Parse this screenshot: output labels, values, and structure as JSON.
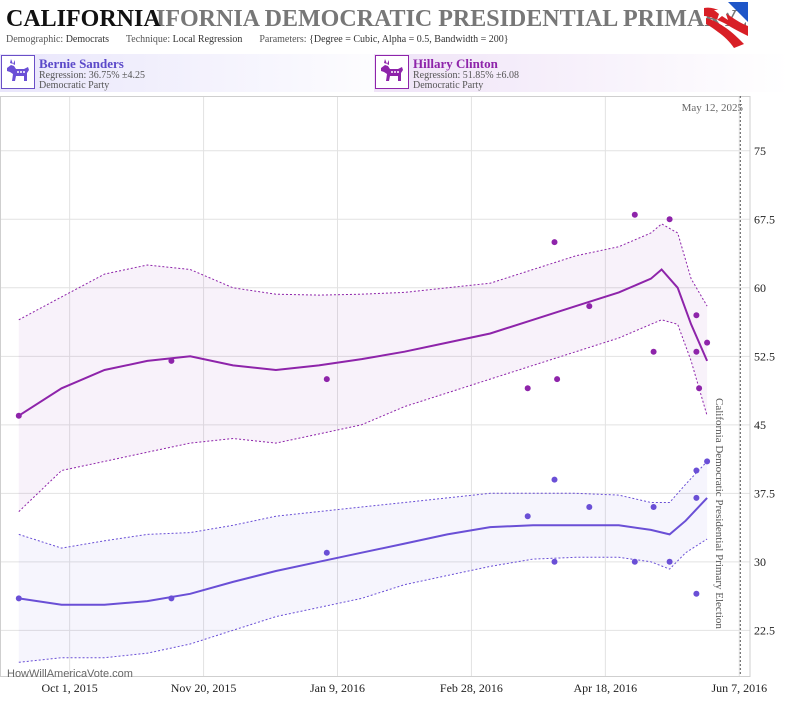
{
  "header": {
    "title_bold": "CALIFORNIA",
    "title_ghost": "IFORNIA DEMOCRATIC PRESIDENTIAL PRIMARY 20",
    "demographic_label": "Demographic:",
    "demographic_value": "Democrats",
    "technique_label": "Technique:",
    "technique_value": "Local Regression",
    "parameters_label": "Parameters:",
    "parameters_value": "{Degree = Cubic, Alpha = 0.5, Bandwidth = 200}"
  },
  "candidates": [
    {
      "name": "Bernie Sanders",
      "regression": "Regression: 36.75% ±4.25",
      "party": "Democratic Party",
      "color": "#6a4fd6"
    },
    {
      "name": "Hillary Clinton",
      "regression": "Regression: 51.85% ±6.08",
      "party": "Democratic Party",
      "color": "#8e24aa"
    }
  ],
  "watermark": "HowWillAmericaVote.com",
  "chart_data": {
    "type": "scatter",
    "date_label": "May 12, 2025",
    "election_label": "California Democratic Presidential Primary Election",
    "x_ticks": [
      "Oct 1, 2015",
      "Nov 20, 2015",
      "Jan 9, 2016",
      "Feb 28, 2016",
      "Apr 18, 2016",
      "Jun 7, 2016"
    ],
    "y_ticks": [
      "22.5",
      "30",
      "37.5",
      "45",
      "52.5",
      "60",
      "67.5",
      "75"
    ],
    "ylim": [
      17.5,
      81
    ],
    "xlim": [
      "2015-09-05",
      "2016-06-11"
    ],
    "grid": true,
    "series": [
      {
        "name": "Hillary Clinton",
        "color": "#8e24aa",
        "points": [
          [
            "2015-09-12",
            46
          ],
          [
            "2015-11-08",
            52
          ],
          [
            "2016-01-05",
            50
          ],
          [
            "2016-03-20",
            49
          ],
          [
            "2016-03-30",
            65
          ],
          [
            "2016-03-31",
            50
          ],
          [
            "2016-04-12",
            58
          ],
          [
            "2016-04-29",
            68
          ],
          [
            "2016-05-06",
            53
          ],
          [
            "2016-05-12",
            67.5
          ],
          [
            "2016-05-22",
            57
          ],
          [
            "2016-05-22",
            53
          ],
          [
            "2016-05-23",
            49
          ],
          [
            "2016-05-26",
            54
          ]
        ],
        "trend": [
          [
            "2015-09-12",
            46
          ],
          [
            "2015-09-28",
            49
          ],
          [
            "2015-10-14",
            51
          ],
          [
            "2015-10-30",
            52
          ],
          [
            "2015-11-15",
            52.5
          ],
          [
            "2015-12-01",
            51.5
          ],
          [
            "2015-12-17",
            51
          ],
          [
            "2016-01-02",
            51.5
          ],
          [
            "2016-01-18",
            52.2
          ],
          [
            "2016-02-03",
            53
          ],
          [
            "2016-02-19",
            54
          ],
          [
            "2016-03-06",
            55
          ],
          [
            "2016-03-22",
            56.5
          ],
          [
            "2016-04-07",
            58
          ],
          [
            "2016-04-23",
            59.5
          ],
          [
            "2016-05-05",
            61
          ],
          [
            "2016-05-09",
            62
          ],
          [
            "2016-05-15",
            60
          ],
          [
            "2016-05-20",
            56
          ],
          [
            "2016-05-26",
            52
          ]
        ],
        "band_upper": [
          [
            "2015-09-12",
            56.5
          ],
          [
            "2015-09-28",
            59
          ],
          [
            "2015-10-14",
            61.5
          ],
          [
            "2015-10-30",
            62.5
          ],
          [
            "2015-11-15",
            62
          ],
          [
            "2015-12-01",
            60
          ],
          [
            "2015-12-17",
            59.3
          ],
          [
            "2016-01-02",
            59.2
          ],
          [
            "2016-01-18",
            59.3
          ],
          [
            "2016-02-03",
            59.5
          ],
          [
            "2016-02-19",
            60
          ],
          [
            "2016-03-06",
            60.5
          ],
          [
            "2016-03-22",
            62
          ],
          [
            "2016-04-07",
            63.5
          ],
          [
            "2016-04-23",
            64.5
          ],
          [
            "2016-05-05",
            66
          ],
          [
            "2016-05-09",
            67
          ],
          [
            "2016-05-15",
            66
          ],
          [
            "2016-05-20",
            61
          ],
          [
            "2016-05-26",
            58
          ]
        ],
        "band_lower": [
          [
            "2015-09-12",
            35.5
          ],
          [
            "2015-09-28",
            40
          ],
          [
            "2015-10-14",
            41
          ],
          [
            "2015-10-30",
            42
          ],
          [
            "2015-11-15",
            43
          ],
          [
            "2015-12-01",
            43.5
          ],
          [
            "2015-12-17",
            43
          ],
          [
            "2016-01-02",
            44
          ],
          [
            "2016-01-18",
            45
          ],
          [
            "2016-02-03",
            47
          ],
          [
            "2016-02-19",
            48.5
          ],
          [
            "2016-03-06",
            50
          ],
          [
            "2016-03-22",
            51.5
          ],
          [
            "2016-04-07",
            53
          ],
          [
            "2016-04-23",
            54.5
          ],
          [
            "2016-05-05",
            56
          ],
          [
            "2016-05-09",
            56.5
          ],
          [
            "2016-05-15",
            56
          ],
          [
            "2016-05-20",
            52
          ],
          [
            "2016-05-26",
            46
          ]
        ]
      },
      {
        "name": "Bernie Sanders",
        "color": "#6a4fd6",
        "points": [
          [
            "2015-09-12",
            26
          ],
          [
            "2015-11-08",
            26
          ],
          [
            "2016-01-05",
            31
          ],
          [
            "2016-03-20",
            35
          ],
          [
            "2016-03-30",
            39
          ],
          [
            "2016-03-30",
            30
          ],
          [
            "2016-04-12",
            36
          ],
          [
            "2016-04-29",
            30
          ],
          [
            "2016-05-06",
            36
          ],
          [
            "2016-05-12",
            30
          ],
          [
            "2016-05-22",
            40
          ],
          [
            "2016-05-22",
            37
          ],
          [
            "2016-05-22",
            26.5
          ],
          [
            "2016-05-26",
            41
          ]
        ],
        "trend": [
          [
            "2015-09-12",
            26
          ],
          [
            "2015-09-28",
            25.3
          ],
          [
            "2015-10-14",
            25.3
          ],
          [
            "2015-10-30",
            25.7
          ],
          [
            "2015-11-15",
            26.5
          ],
          [
            "2015-12-01",
            27.8
          ],
          [
            "2015-12-17",
            29
          ],
          [
            "2016-01-02",
            30
          ],
          [
            "2016-01-18",
            31
          ],
          [
            "2016-02-03",
            32
          ],
          [
            "2016-02-19",
            33
          ],
          [
            "2016-03-06",
            33.8
          ],
          [
            "2016-03-22",
            34
          ],
          [
            "2016-04-07",
            34
          ],
          [
            "2016-04-23",
            34
          ],
          [
            "2016-05-05",
            33.5
          ],
          [
            "2016-05-12",
            33
          ],
          [
            "2016-05-18",
            34.5
          ],
          [
            "2016-05-26",
            37
          ]
        ],
        "band_upper": [
          [
            "2015-09-12",
            33
          ],
          [
            "2015-09-28",
            31.5
          ],
          [
            "2015-10-14",
            32.3
          ],
          [
            "2015-10-30",
            33
          ],
          [
            "2015-11-15",
            33.2
          ],
          [
            "2015-12-01",
            34
          ],
          [
            "2015-12-17",
            35
          ],
          [
            "2016-01-02",
            35.5
          ],
          [
            "2016-01-18",
            36
          ],
          [
            "2016-02-03",
            36.5
          ],
          [
            "2016-02-19",
            37
          ],
          [
            "2016-03-06",
            37.5
          ],
          [
            "2016-03-22",
            37.5
          ],
          [
            "2016-04-07",
            37.5
          ],
          [
            "2016-04-23",
            37.3
          ],
          [
            "2016-05-05",
            36.5
          ],
          [
            "2016-05-12",
            36.5
          ],
          [
            "2016-05-18",
            38.5
          ],
          [
            "2016-05-26",
            41
          ]
        ],
        "band_lower": [
          [
            "2015-09-12",
            19
          ],
          [
            "2015-09-28",
            19.5
          ],
          [
            "2015-10-14",
            19.5
          ],
          [
            "2015-10-30",
            20
          ],
          [
            "2015-11-15",
            21
          ],
          [
            "2015-12-01",
            22.5
          ],
          [
            "2015-12-17",
            24
          ],
          [
            "2016-01-02",
            25
          ],
          [
            "2016-01-18",
            26
          ],
          [
            "2016-02-03",
            27.5
          ],
          [
            "2016-02-19",
            28.5
          ],
          [
            "2016-03-06",
            29.5
          ],
          [
            "2016-03-22",
            30.3
          ],
          [
            "2016-04-07",
            30.5
          ],
          [
            "2016-04-23",
            30.5
          ],
          [
            "2016-05-05",
            30
          ],
          [
            "2016-05-12",
            29.2
          ],
          [
            "2016-05-18",
            31
          ],
          [
            "2016-05-26",
            32.5
          ]
        ]
      }
    ]
  }
}
